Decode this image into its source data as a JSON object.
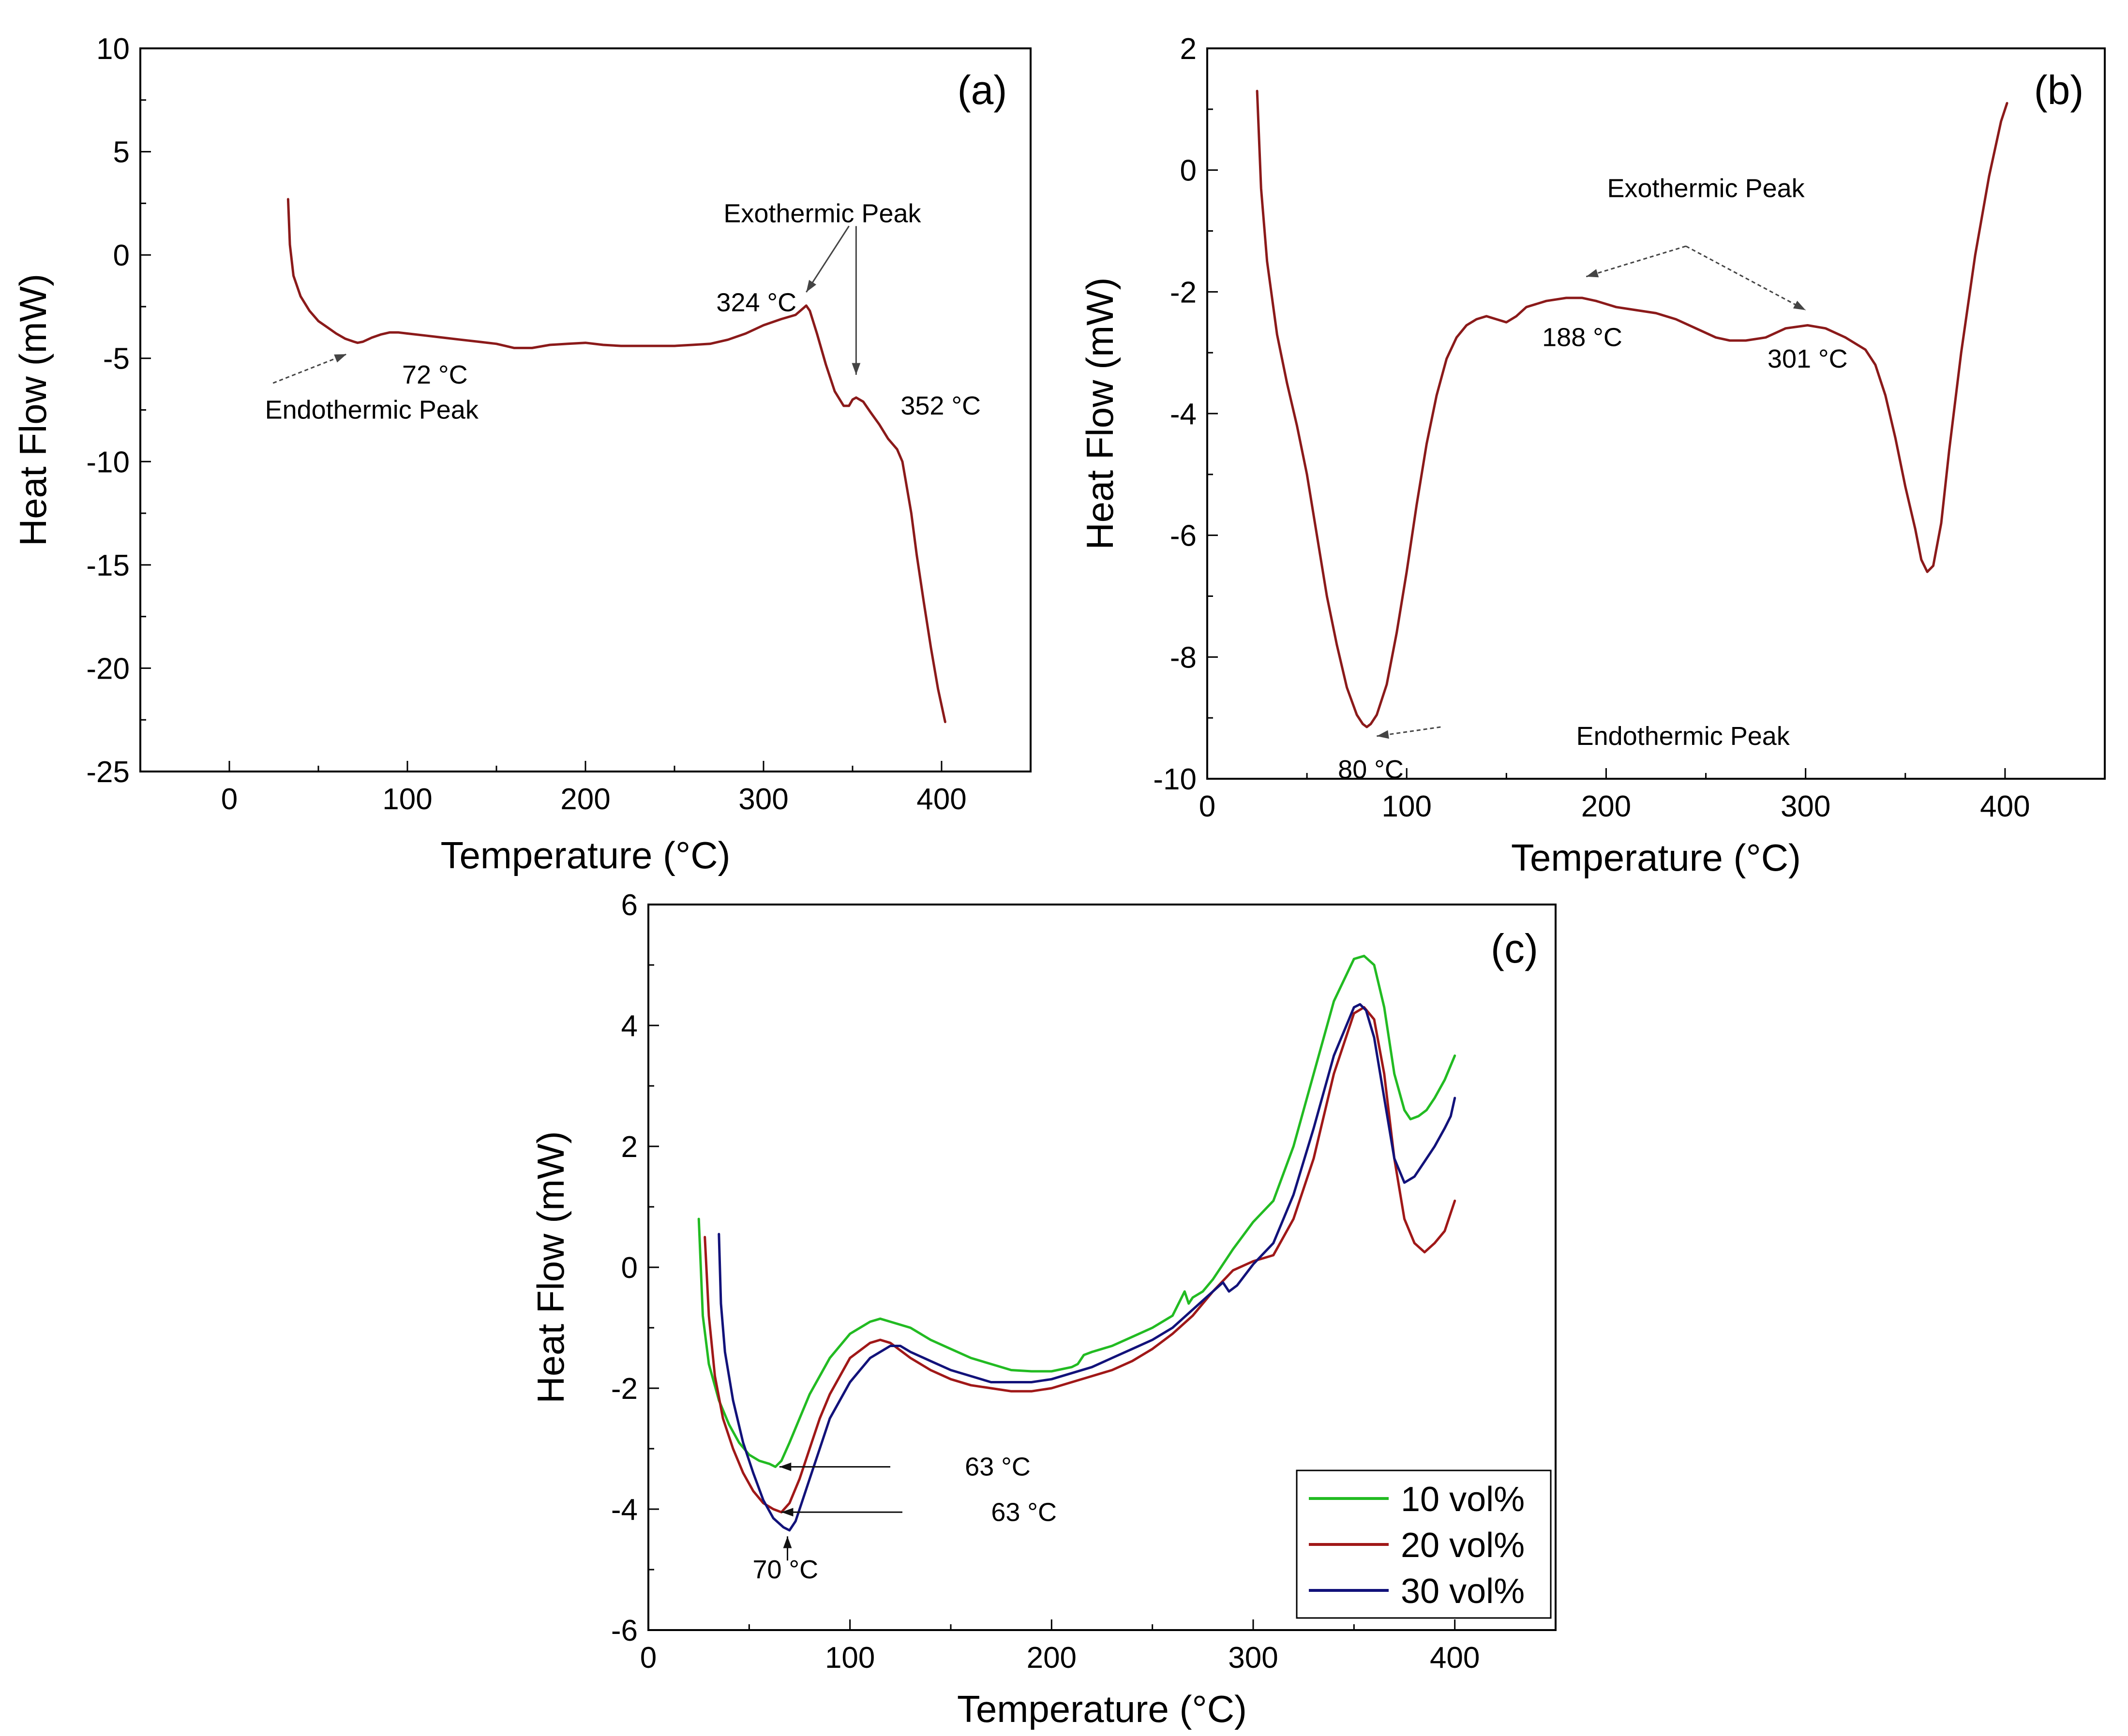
{
  "colors": {
    "axis": "#000000",
    "curve_ab": "#8B1A1A",
    "green": "#22BB22",
    "red": "#A01818",
    "blue": "#12127A",
    "annot_arrow": "#444444"
  },
  "chart_data": [
    {
      "id": "a",
      "type": "line",
      "panel_label": "(a)",
      "xlabel": "Temperature (°C)",
      "ylabel": "Heat Flow (mW)",
      "xlim": [
        -50,
        450
      ],
      "ylim": [
        -25,
        10
      ],
      "xticks": [
        0,
        100,
        200,
        300,
        400
      ],
      "yticks": [
        -25,
        -20,
        -15,
        -10,
        -5,
        0,
        5,
        10
      ],
      "series": [
        {
          "name": "DSC",
          "color": "#8B1A1A",
          "x": [
            33,
            34,
            36,
            40,
            45,
            50,
            55,
            60,
            65,
            70,
            72,
            75,
            80,
            85,
            90,
            95,
            100,
            110,
            120,
            130,
            140,
            150,
            160,
            170,
            180,
            190,
            200,
            210,
            220,
            230,
            240,
            250,
            260,
            270,
            280,
            290,
            300,
            310,
            318,
            322,
            324,
            326,
            330,
            335,
            340,
            345,
            348,
            350,
            352,
            356,
            360,
            365,
            370,
            375,
            378,
            380,
            383,
            386,
            390,
            394,
            398,
            402
          ],
          "y": [
            2.7,
            0.5,
            -1.0,
            -2.0,
            -2.7,
            -3.2,
            -3.5,
            -3.8,
            -4.05,
            -4.2,
            -4.25,
            -4.2,
            -4.0,
            -3.85,
            -3.75,
            -3.75,
            -3.8,
            -3.9,
            -4.0,
            -4.1,
            -4.2,
            -4.3,
            -4.5,
            -4.5,
            -4.35,
            -4.3,
            -4.25,
            -4.35,
            -4.4,
            -4.4,
            -4.4,
            -4.4,
            -4.35,
            -4.3,
            -4.1,
            -3.8,
            -3.4,
            -3.1,
            -2.9,
            -2.6,
            -2.45,
            -2.7,
            -3.8,
            -5.3,
            -6.6,
            -7.3,
            -7.3,
            -7.0,
            -6.9,
            -7.1,
            -7.6,
            -8.2,
            -8.9,
            -9.4,
            -10.0,
            -11.0,
            -12.5,
            -14.5,
            -16.8,
            -19.0,
            -21.0,
            -22.6
          ]
        }
      ],
      "annotations": [
        {
          "text": "72 °C",
          "x": 97,
          "y": -5.8
        },
        {
          "text": "Endothermic Peak",
          "x": 20,
          "y": -7.5
        },
        {
          "text": "324 °C",
          "x": 296,
          "y": -2.3
        },
        {
          "text": "352 °C",
          "x": 377,
          "y": -7.3
        },
        {
          "text": "Exothermic Peak",
          "x": 333,
          "y": 2.0
        }
      ]
    },
    {
      "id": "b",
      "type": "line",
      "panel_label": "(b)",
      "xlabel": "Temperature (°C)",
      "ylabel": "Heat Flow (mW)",
      "xlim": [
        0,
        450
      ],
      "ylim": [
        -10,
        2
      ],
      "xticks": [
        0,
        100,
        200,
        300,
        400
      ],
      "yticks": [
        -10,
        -8,
        -6,
        -4,
        -2,
        0,
        2
      ],
      "series": [
        {
          "name": "DSC",
          "color": "#8B1A1A",
          "x": [
            25,
            27,
            30,
            35,
            40,
            45,
            50,
            55,
            60,
            65,
            70,
            75,
            78,
            80,
            82,
            85,
            90,
            95,
            100,
            105,
            110,
            115,
            120,
            125,
            130,
            135,
            140,
            145,
            150,
            155,
            160,
            170,
            180,
            188,
            195,
            205,
            215,
            225,
            235,
            245,
            255,
            262,
            270,
            280,
            290,
            301,
            310,
            320,
            330,
            335,
            340,
            345,
            350,
            355,
            358,
            361,
            364,
            368,
            372,
            378,
            385,
            392,
            398,
            401
          ],
          "y": [
            1.3,
            -0.3,
            -1.5,
            -2.7,
            -3.5,
            -4.2,
            -5.0,
            -6.0,
            -7.0,
            -7.8,
            -8.5,
            -8.95,
            -9.1,
            -9.15,
            -9.1,
            -8.95,
            -8.45,
            -7.6,
            -6.6,
            -5.5,
            -4.5,
            -3.7,
            -3.1,
            -2.75,
            -2.55,
            -2.45,
            -2.4,
            -2.45,
            -2.5,
            -2.4,
            -2.25,
            -2.15,
            -2.1,
            -2.1,
            -2.15,
            -2.25,
            -2.3,
            -2.35,
            -2.45,
            -2.6,
            -2.75,
            -2.8,
            -2.8,
            -2.75,
            -2.6,
            -2.55,
            -2.6,
            -2.75,
            -2.95,
            -3.2,
            -3.7,
            -4.4,
            -5.2,
            -5.9,
            -6.4,
            -6.6,
            -6.5,
            -5.8,
            -4.6,
            -3.0,
            -1.4,
            -0.1,
            0.8,
            1.1
          ]
        }
      ],
      "annotations": [
        {
          "text": "Exothermic Peak",
          "x": 250,
          "y": -0.3
        },
        {
          "text": "188 °C",
          "x": 188,
          "y": -2.75
        },
        {
          "text": "301 °C",
          "x": 301,
          "y": -3.1
        },
        {
          "text": "Endothermic Peak",
          "x": 185,
          "y": -9.3
        },
        {
          "text": "80 °C",
          "x": 82,
          "y": -9.85
        }
      ]
    },
    {
      "id": "c",
      "type": "line",
      "panel_label": "(c)",
      "xlabel": "Temperature (°C)",
      "ylabel": "Heat Flow (mW)",
      "xlim": [
        0,
        450
      ],
      "ylim": [
        -6,
        6
      ],
      "xticks": [
        0,
        100,
        200,
        300,
        400
      ],
      "yticks": [
        -6,
        -4,
        -2,
        0,
        2,
        4,
        6
      ],
      "legend_position": "bottom-right",
      "series": [
        {
          "name": "10 vol%",
          "color": "#22BB22",
          "x": [
            25,
            27,
            30,
            35,
            40,
            45,
            50,
            55,
            60,
            63,
            66,
            70,
            75,
            80,
            90,
            100,
            110,
            115,
            120,
            130,
            140,
            150,
            160,
            170,
            180,
            190,
            200,
            210,
            213,
            216,
            220,
            230,
            240,
            250,
            260,
            266,
            268,
            270,
            275,
            280,
            290,
            300,
            310,
            320,
            330,
            340,
            350,
            355,
            360,
            365,
            370,
            375,
            378,
            382,
            386,
            390,
            395,
            400
          ],
          "y": [
            0.8,
            -0.8,
            -1.6,
            -2.2,
            -2.6,
            -2.9,
            -3.1,
            -3.2,
            -3.25,
            -3.3,
            -3.2,
            -2.9,
            -2.5,
            -2.1,
            -1.5,
            -1.1,
            -0.9,
            -0.85,
            -0.9,
            -1.0,
            -1.2,
            -1.35,
            -1.5,
            -1.6,
            -1.7,
            -1.72,
            -1.72,
            -1.65,
            -1.6,
            -1.45,
            -1.4,
            -1.3,
            -1.15,
            -1.0,
            -0.8,
            -0.4,
            -0.6,
            -0.5,
            -0.4,
            -0.2,
            0.3,
            0.75,
            1.1,
            2.0,
            3.2,
            4.4,
            5.1,
            5.15,
            5.0,
            4.3,
            3.2,
            2.6,
            2.45,
            2.5,
            2.6,
            2.8,
            3.1,
            3.5
          ]
        },
        {
          "name": "20 vol%",
          "color": "#A01818",
          "x": [
            28,
            30,
            33,
            37,
            42,
            47,
            52,
            57,
            62,
            66,
            70,
            75,
            80,
            85,
            90,
            100,
            110,
            115,
            120,
            130,
            140,
            150,
            160,
            170,
            180,
            190,
            200,
            210,
            220,
            230,
            240,
            250,
            260,
            270,
            280,
            290,
            300,
            310,
            320,
            330,
            340,
            350,
            355,
            360,
            365,
            370,
            375,
            380,
            385,
            390,
            395,
            398,
            400
          ],
          "y": [
            0.5,
            -0.8,
            -1.8,
            -2.5,
            -3.0,
            -3.4,
            -3.7,
            -3.9,
            -4.0,
            -4.05,
            -3.9,
            -3.5,
            -3.0,
            -2.5,
            -2.1,
            -1.5,
            -1.25,
            -1.2,
            -1.25,
            -1.5,
            -1.7,
            -1.85,
            -1.95,
            -2.0,
            -2.05,
            -2.05,
            -2.0,
            -1.9,
            -1.8,
            -1.7,
            -1.55,
            -1.35,
            -1.1,
            -0.8,
            -0.4,
            -0.05,
            0.1,
            0.2,
            0.8,
            1.8,
            3.2,
            4.2,
            4.3,
            4.1,
            3.2,
            1.8,
            0.8,
            0.4,
            0.25,
            0.4,
            0.6,
            0.9,
            1.1
          ]
        },
        {
          "name": "30 vol%",
          "color": "#12127A",
          "x": [
            35,
            36,
            38,
            42,
            47,
            52,
            57,
            62,
            67,
            70,
            73,
            76,
            80,
            85,
            90,
            100,
            110,
            120,
            125,
            130,
            140,
            150,
            160,
            170,
            180,
            190,
            200,
            210,
            220,
            230,
            240,
            250,
            260,
            270,
            280,
            285,
            288,
            292,
            300,
            310,
            320,
            330,
            340,
            350,
            353,
            356,
            360,
            365,
            370,
            375,
            380,
            385,
            390,
            395,
            398,
            400
          ],
          "y": [
            0.55,
            -0.6,
            -1.4,
            -2.2,
            -2.9,
            -3.4,
            -3.85,
            -4.15,
            -4.3,
            -4.35,
            -4.2,
            -3.9,
            -3.5,
            -3.0,
            -2.5,
            -1.9,
            -1.5,
            -1.3,
            -1.3,
            -1.4,
            -1.55,
            -1.7,
            -1.8,
            -1.9,
            -1.9,
            -1.9,
            -1.85,
            -1.75,
            -1.65,
            -1.5,
            -1.35,
            -1.2,
            -1.0,
            -0.7,
            -0.4,
            -0.25,
            -0.4,
            -0.3,
            0.05,
            0.4,
            1.2,
            2.3,
            3.5,
            4.3,
            4.35,
            4.25,
            3.8,
            2.8,
            1.8,
            1.4,
            1.5,
            1.75,
            2.0,
            2.3,
            2.5,
            2.8
          ]
        }
      ],
      "annotations": [
        {
          "text": "63 °C",
          "x": 157,
          "y": -3.3
        },
        {
          "text": "63 °C",
          "x": 170,
          "y": -4.05
        },
        {
          "text": "70 °C",
          "x": 68,
          "y": -5.0
        }
      ]
    }
  ]
}
